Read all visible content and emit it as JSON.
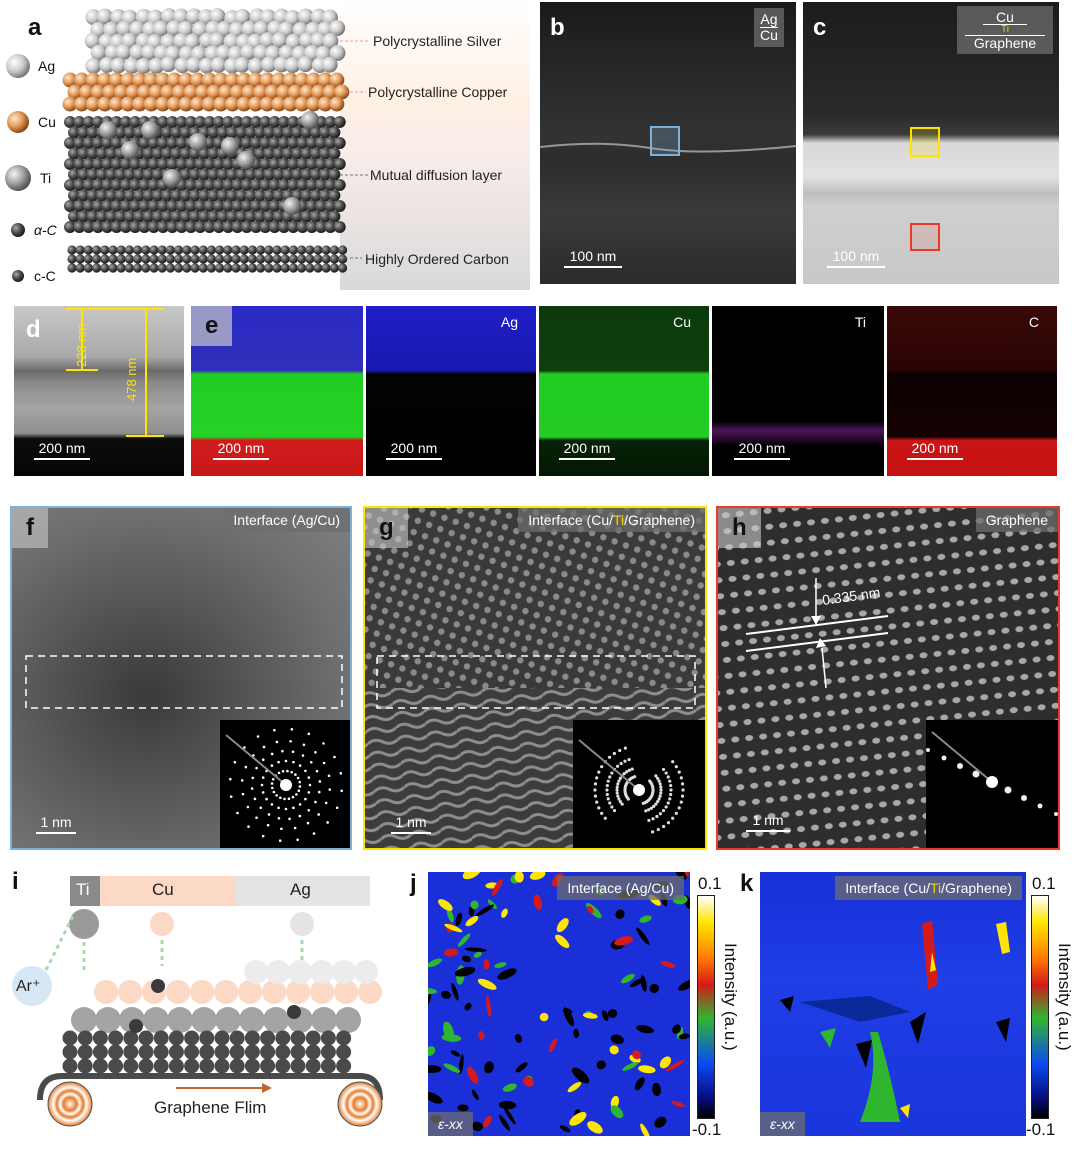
{
  "panel_a": {
    "label": "a",
    "legend": [
      {
        "name": "Ag"
      },
      {
        "name": "Cu"
      },
      {
        "name": "Ti"
      },
      {
        "name": "α-C"
      },
      {
        "name": "c-C"
      }
    ],
    "layers": [
      {
        "name": "Polycrystalline Silver"
      },
      {
        "name": "Polycrystalline Copper"
      },
      {
        "name": "Mutual diffusion layer"
      },
      {
        "name": "Highly Ordered Carbon"
      }
    ]
  },
  "panel_b": {
    "label": "b",
    "tag_top": "Ag",
    "tag_bottom": "Cu",
    "scale": "100 nm"
  },
  "panel_c": {
    "label": "c",
    "tag_top": "Cu",
    "tag_mid": "Ti",
    "tag_bottom": "Graphene",
    "scale": "100 nm"
  },
  "panel_d": {
    "label": "d",
    "measure1": "228 nm",
    "measure2": "478 nm",
    "scale": "200 nm"
  },
  "panel_e": {
    "label": "e",
    "maps": [
      {
        "element": "",
        "scale": "200 nm"
      },
      {
        "element": "Ag",
        "scale": "200 nm"
      },
      {
        "element": "Cu",
        "scale": "200 nm"
      },
      {
        "element": "Ti",
        "scale": "200 nm"
      },
      {
        "element": "C",
        "scale": "200 nm"
      }
    ]
  },
  "panel_f": {
    "label": "f",
    "tag": "Interface (Ag/Cu)",
    "scale": "1 nm"
  },
  "panel_g": {
    "label": "g",
    "tag_prefix": "Interface (Cu/",
    "tag_ti": "Ti",
    "tag_suffix": "/Graphene)",
    "scale": "1 nm"
  },
  "panel_h": {
    "label": "h",
    "tag": "Graphene",
    "spacing": "0.335 nm",
    "scale": "1 nm"
  },
  "panel_i": {
    "label": "i",
    "bar": [
      "Ti",
      "Cu",
      "Ag"
    ],
    "ion": "Ar⁺",
    "caption": "Graphene Flim"
  },
  "panel_j": {
    "label": "j",
    "tag": "Interface (Ag/Cu)",
    "strain": "ε-xx",
    "cb_max": "0.1",
    "cb_min": "-0.1",
    "cb_title": "Intensity (a.u.)"
  },
  "panel_k": {
    "label": "k",
    "tag_prefix": "Interface (Cu/",
    "tag_ti": "Ti",
    "tag_suffix": "/Graphene)",
    "strain": "ε-xx",
    "cb_max": "0.1",
    "cb_min": "-0.1",
    "cb_title": "Intensity (a.u.)"
  },
  "colors": {
    "ag_sphere": "#cfcfcf",
    "cu_sphere": "#e9a268",
    "ti_sphere": "#8a8a8a",
    "carbon_sphere": "#4a4a4a",
    "box_blue": "#7fb0d8",
    "box_yellow": "#ffe400",
    "box_red": "#e8392a",
    "ti_text": "#f2d600",
    "map_ag": "#1a1ad8",
    "map_cu": "#22d022",
    "map_ti": "#b030c8",
    "map_c": "#d01818"
  }
}
